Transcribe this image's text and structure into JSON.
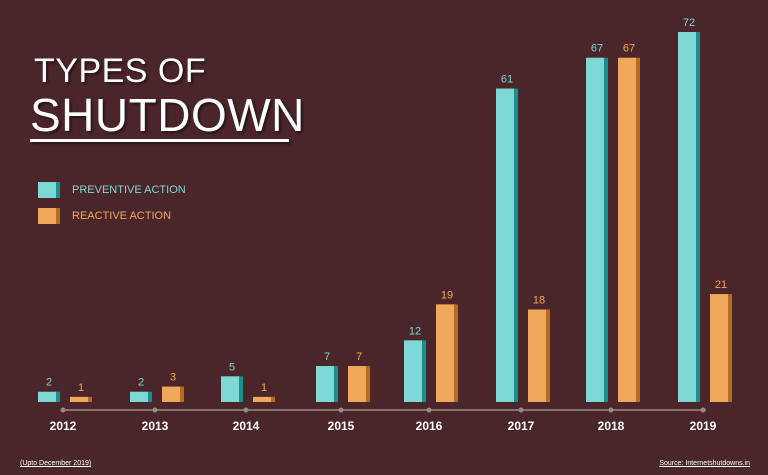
{
  "title": {
    "line1": "TYPES OF",
    "line2": "SHUTDOWN"
  },
  "footnote_left": "(Upto December 2019)",
  "footnote_right": "Source: Internetshutdowns.in",
  "colors": {
    "background": "#4a252a",
    "preventive": "#7ed8d6",
    "preventive_side": "#1c8f8c",
    "reactive": "#f1a85b",
    "reactive_side": "#b46b22",
    "axis": "#9b8a8c",
    "year_label": "#ffffff"
  },
  "chart_data": {
    "type": "bar",
    "categories": [
      "2012",
      "2013",
      "2014",
      "2015",
      "2016",
      "2017",
      "2018",
      "2019"
    ],
    "series": [
      {
        "name": "PREVENTIVE ACTION",
        "values": [
          2,
          2,
          5,
          7,
          12,
          61,
          67,
          72
        ]
      },
      {
        "name": "REACTIVE ACTION",
        "values": [
          1,
          3,
          1,
          7,
          19,
          18,
          67,
          21
        ]
      }
    ],
    "legend_position": "left",
    "grid": false
  }
}
